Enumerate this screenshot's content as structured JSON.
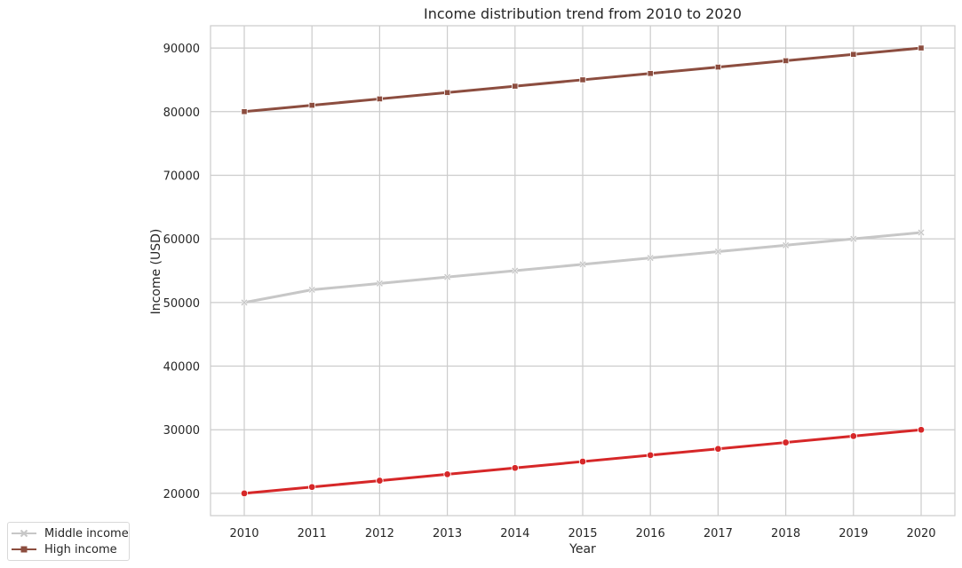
{
  "chart_data": {
    "type": "line",
    "title": "Income distribution trend from 2010 to 2020",
    "xlabel": "Year",
    "ylabel": "Income (USD)",
    "x": [
      "2010",
      "2011",
      "2012",
      "2013",
      "2014",
      "2015",
      "2016",
      "2017",
      "2018",
      "2019",
      "2020"
    ],
    "ylim": [
      16500,
      93500
    ],
    "yticks": [
      20000,
      30000,
      40000,
      50000,
      60000,
      70000,
      80000,
      90000
    ],
    "grid": true,
    "legend_position": "lower-left, outside plot",
    "series": [
      {
        "values": [
          20000,
          21000,
          22000,
          23000,
          24000,
          25000,
          26000,
          27000,
          28000,
          29000,
          30000
        ],
        "color": "#d62728",
        "marker": "circle"
      },
      {
        "name": "Middle income",
        "values": [
          50000,
          52000,
          53000,
          54000,
          55000,
          56000,
          57000,
          58000,
          59000,
          60000,
          61000
        ],
        "color": "#c7c7c7",
        "marker": "x"
      },
      {
        "name": "High income",
        "values": [
          80000,
          81000,
          82000,
          83000,
          84000,
          85000,
          86000,
          87000,
          88000,
          89000,
          90000
        ],
        "color": "#8c4d3f",
        "marker": "square"
      }
    ]
  },
  "legend": {
    "items": [
      {
        "label": "Middle income",
        "color": "#c7c7c7",
        "marker": "x"
      },
      {
        "label": "High income",
        "color": "#8c4d3f",
        "marker": "square"
      }
    ]
  }
}
